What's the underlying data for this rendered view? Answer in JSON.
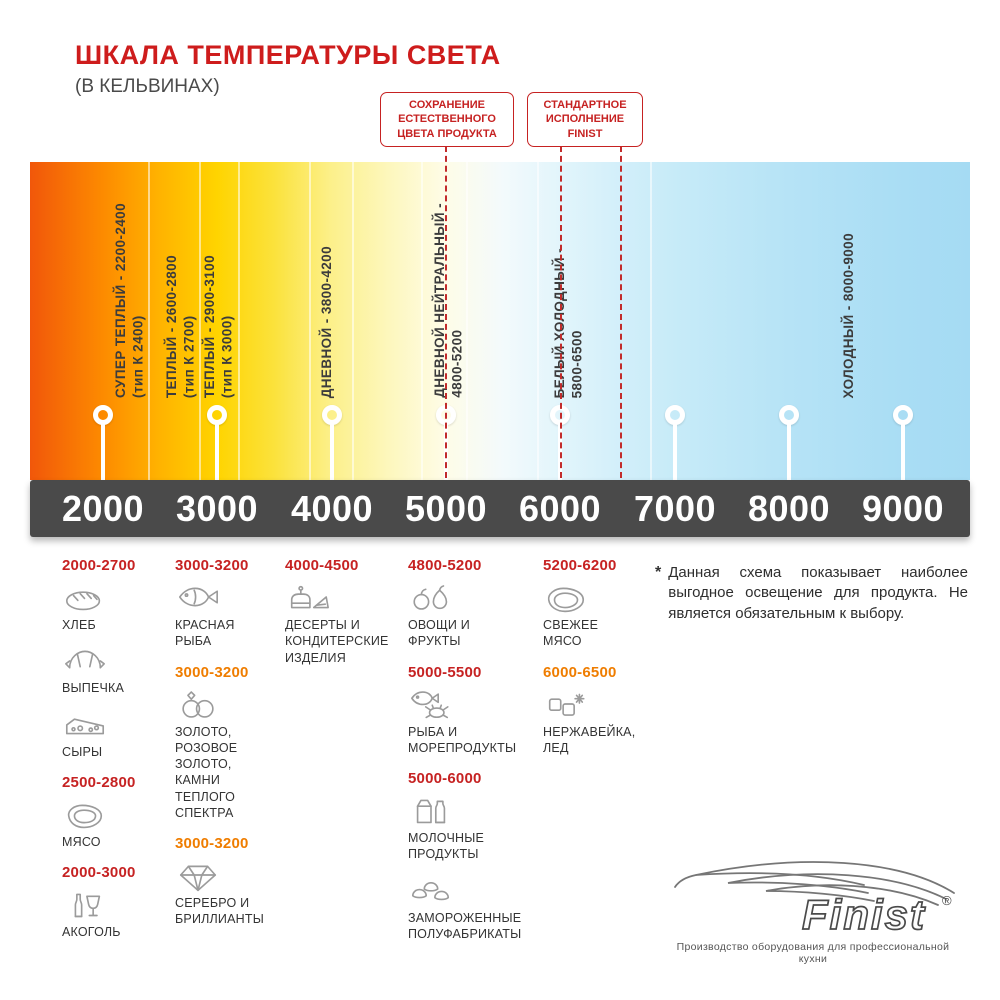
{
  "header": {
    "title": "ШКАЛА ТЕМПЕРАТУРЫ СВЕТА",
    "subtitle": "(В КЕЛЬВИНАХ)"
  },
  "callouts": [
    {
      "text": "СОХРАНЕНИЕ\nЕСТЕСТВЕННОГО\nЦВЕТА ПРОДУКТА"
    },
    {
      "text": "СТАНДАРТНОЕ\nИСПОЛНЕНИЕ\nFINIST"
    }
  ],
  "scale": {
    "ticks": [
      "2000",
      "3000",
      "4000",
      "5000",
      "6000",
      "7000",
      "8000",
      "9000"
    ],
    "labels": [
      {
        "text": "СУПЕР ТЕПЛЫЙ - 2200-2400",
        "sub": "(тип К 2400)"
      },
      {
        "text": "ТЕПЛЫЙ - 2600-2800",
        "sub": "(тип К 2700)"
      },
      {
        "text": "ТЕПЛЫЙ - 2900-3100",
        "sub": "(тип К 3000)"
      },
      {
        "text": "ДНЕВНОЙ - 3800-4200",
        "sub": ""
      },
      {
        "text": "ДНЕВНОЙ НЕЙТРАЛЬНЫЙ -",
        "sub": "4800-5200"
      },
      {
        "text": "БЕЛЫЙ ХОЛОДНЫЙ -",
        "sub": "5800-6500"
      },
      {
        "text": "ХОЛОДНЫЙ - 8000-9000",
        "sub": ""
      }
    ]
  },
  "columns": [
    {
      "groups": [
        {
          "range": "2000-2700",
          "tone": "red",
          "items": [
            {
              "icon": "bread-icon",
              "label": "ХЛЕБ"
            },
            {
              "icon": "croissant-icon",
              "label": "ВЫПЕЧКА"
            },
            {
              "icon": "cheese-icon",
              "label": "СЫРЫ"
            }
          ]
        },
        {
          "range": "2500-2800",
          "tone": "red",
          "items": [
            {
              "icon": "meat-icon",
              "label": "МЯСО"
            }
          ]
        },
        {
          "range": "2000-3000",
          "tone": "red",
          "items": [
            {
              "icon": "wine-icon",
              "label": "АКОГОЛЬ"
            }
          ]
        }
      ]
    },
    {
      "groups": [
        {
          "range": "3000-3200",
          "tone": "red",
          "items": [
            {
              "icon": "fish-icon",
              "label": "КРАСНАЯ\nРЫБА"
            }
          ]
        },
        {
          "range": "3000-3200",
          "tone": "orange",
          "items": [
            {
              "icon": "rings-icon",
              "label": "ЗОЛОТО,\nРОЗОВОЕ ЗОЛОТО,\nКАМНИ ТЕПЛОГО\nСПЕКТРА"
            }
          ]
        },
        {
          "range": "3000-3200",
          "tone": "orange",
          "items": [
            {
              "icon": "diamond-icon",
              "label": "СЕРЕБРО И\nБРИЛЛИАНТЫ"
            }
          ]
        }
      ]
    },
    {
      "groups": [
        {
          "range": "4000-4500",
          "tone": "red",
          "items": [
            {
              "icon": "cake-icon",
              "label": "ДЕСЕРТЫ И\nКОНДИТЕРСКИЕ\nИЗДЕЛИЯ"
            }
          ]
        }
      ]
    },
    {
      "groups": [
        {
          "range": "4800-5200",
          "tone": "red",
          "items": [
            {
              "icon": "fruits-icon",
              "label": "ОВОЩИ И\nФРУКТЫ"
            }
          ]
        },
        {
          "range": "5000-5500",
          "tone": "red",
          "items": [
            {
              "icon": "seafood-icon",
              "label": "РЫБА И\nМОРЕПРОДУКТЫ"
            }
          ]
        },
        {
          "range": "5000-6000",
          "tone": "red",
          "items": [
            {
              "icon": "milk-icon",
              "label": "МОЛОЧНЫЕ ПРОДУКТЫ"
            },
            {
              "icon": "frozen-icon",
              "label": "ЗАМОРОЖЕННЫЕ\nПОЛУФАБРИКАТЫ"
            }
          ]
        }
      ]
    },
    {
      "groups": [
        {
          "range": "5200-6200",
          "tone": "red",
          "items": [
            {
              "icon": "fresh-meat-icon",
              "label": "СВЕЖЕЕ\nМЯСО"
            }
          ]
        },
        {
          "range": "6000-6500",
          "tone": "orange",
          "items": [
            {
              "icon": "ice-icon",
              "label": "НЕРЖАВЕЙКА,\nЛЕД"
            }
          ]
        }
      ]
    }
  ],
  "note": {
    "marker": "*",
    "text": "Данная схема показывает наиболее выгодное освещение для продукта. Не является обязательным к выбору."
  },
  "logo": {
    "brand": "Finist",
    "reg": "®",
    "tagline": "Производство оборудования для профессиональной кухни"
  },
  "colors": {
    "accent_red": "#c62222",
    "accent_orange": "#ef7d00",
    "axis_bar": "#4a4a4a"
  }
}
